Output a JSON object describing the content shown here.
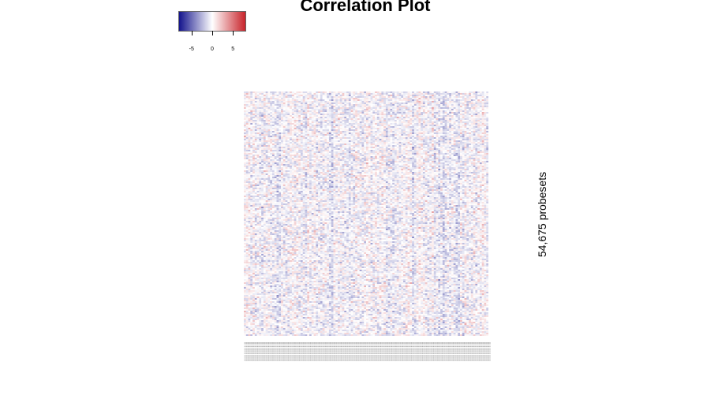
{
  "chart_data": {
    "type": "heatmap",
    "title": "Correlation Plot",
    "ylabel": "54,675 probesets",
    "xlabel": "",
    "legend": {
      "placement": "top-left",
      "colors": [
        "#14148c",
        "#ffffff",
        "#c8232a"
      ],
      "range": [
        -8,
        8
      ],
      "ticks": [
        {
          "value": -5,
          "label": "-5"
        },
        {
          "value": 0,
          "label": "0"
        },
        {
          "value": 5,
          "label": "5"
        }
      ]
    },
    "heatmap": {
      "columns": 112,
      "value_range": [
        -8,
        8
      ],
      "typical_abs_value": 1.5,
      "dominant_tone": "near zero (pale blue/white)"
    }
  }
}
